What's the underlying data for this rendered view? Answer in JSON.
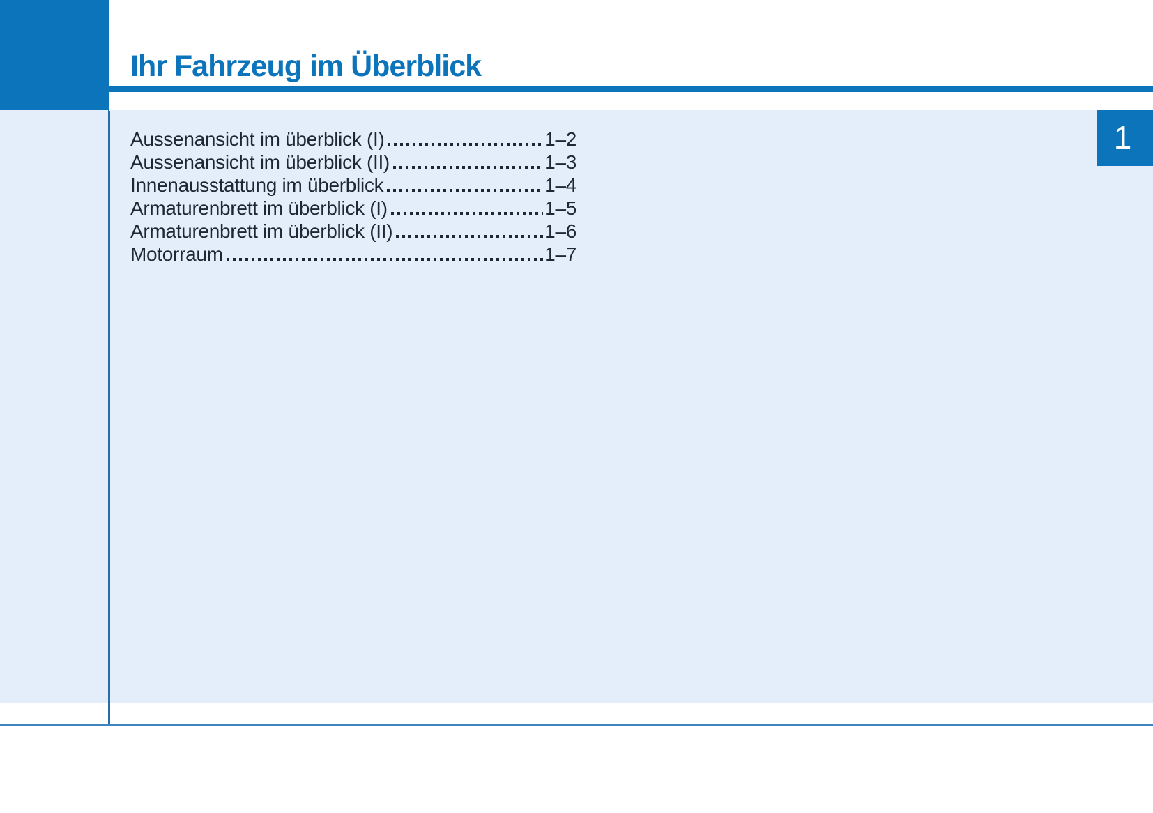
{
  "header": {
    "title": "Ihr Fahrzeug im Überblick"
  },
  "chapter_tab": {
    "number": "1"
  },
  "toc": {
    "entries": [
      {
        "label": "Aussenansicht im überblick (I)",
        "page": "1–2"
      },
      {
        "label": "Aussenansicht im überblick (II)",
        "page": "1–3"
      },
      {
        "label": "Innenausstattung im überblick",
        "page": "1–4"
      },
      {
        "label": "Armaturenbrett im überblick (I)",
        "page": "1–5"
      },
      {
        "label": "Armaturenbrett im überblick (II)",
        "page": "1–6"
      },
      {
        "label": "Motorraum",
        "page": "1–7"
      }
    ]
  },
  "colors": {
    "brand_blue": "#0c74ba",
    "panel_light_blue": "#e4eefa",
    "text_ink": "#1c2834",
    "divider_blue": "#2a6da6",
    "footer_rule_blue": "#3d85c2"
  }
}
